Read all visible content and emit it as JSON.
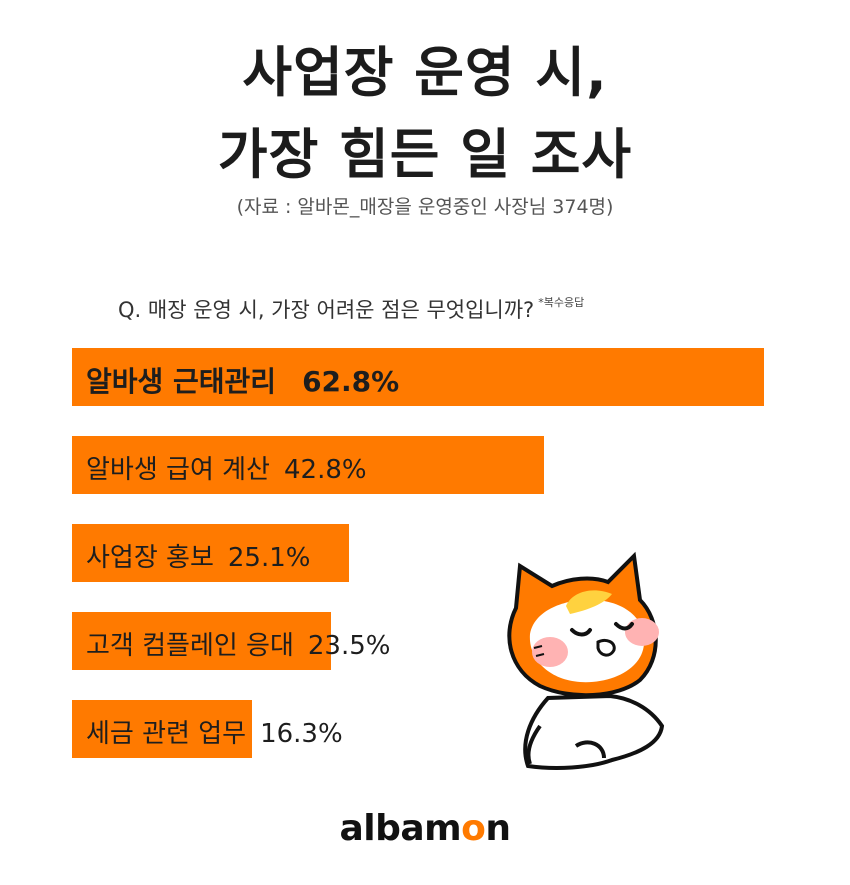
{
  "title": {
    "line1": "사업장 운영 시,",
    "line2": "가장 힘든 일 조사"
  },
  "source": "(자료 : 알바몬_매장을 운영중인 사장님 374명)",
  "question": {
    "text": "Q. 매장 운영 시, 가장 어려운 점은 무엇입니까?",
    "note": "*복수응답"
  },
  "colors": {
    "bar": "#ff7a00",
    "text": "#1e1e1e"
  },
  "chart_data": {
    "type": "bar",
    "orientation": "horizontal",
    "categories": [
      "알바생 근태관리",
      "알바생 급여 계산",
      "사업장 홍보",
      "고객 컴플레인 응대",
      "세금 관련 업무"
    ],
    "values": [
      62.8,
      42.8,
      25.1,
      23.5,
      16.3
    ],
    "value_labels": [
      "62.8%",
      "42.8%",
      "25.1%",
      "23.5%",
      "16.3%"
    ],
    "unit": "%",
    "grid": false
  },
  "logo": {
    "prefix": "albam",
    "o": "o",
    "suffix": "n"
  },
  "mascot_icon": "cat-mascot-icon"
}
